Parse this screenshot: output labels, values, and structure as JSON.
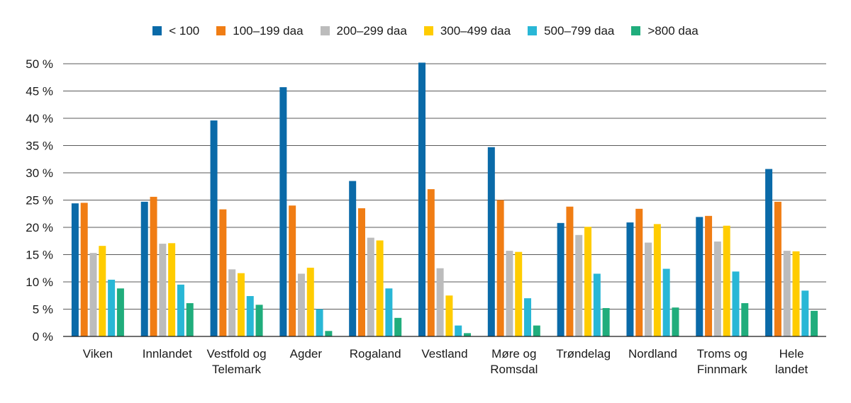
{
  "chart_data": {
    "type": "bar",
    "categories": [
      [
        "Viken"
      ],
      [
        "Innlandet"
      ],
      [
        "Vestfold og",
        "Telemark"
      ],
      [
        "Agder"
      ],
      [
        "Rogaland"
      ],
      [
        "Vestland"
      ],
      [
        "Møre og",
        "Romsdal"
      ],
      [
        "Trøndelag"
      ],
      [
        "Nordland"
      ],
      [
        "Troms og",
        "Finnmark"
      ],
      [
        "Hele",
        "landet"
      ]
    ],
    "series": [
      {
        "name": "< 100",
        "color": "#0a6aa8",
        "values": [
          24.4,
          24.7,
          39.6,
          45.7,
          28.5,
          50.2,
          34.7,
          20.8,
          20.9,
          21.9,
          30.7
        ]
      },
      {
        "name": "100–199 daa",
        "color": "#f07d14",
        "values": [
          24.5,
          25.6,
          23.3,
          24.0,
          23.5,
          27.0,
          25.0,
          23.8,
          23.4,
          22.1,
          24.7
        ]
      },
      {
        "name": "200–299 daa",
        "color": "#bcbcbc",
        "values": [
          15.3,
          17.0,
          12.3,
          11.5,
          18.1,
          12.5,
          15.7,
          18.6,
          17.2,
          17.4,
          15.7
        ]
      },
      {
        "name": "300–499 daa",
        "color": "#ffcc00",
        "values": [
          16.6,
          17.1,
          11.6,
          12.6,
          17.6,
          7.5,
          15.5,
          20.1,
          20.6,
          20.3,
          15.6
        ]
      },
      {
        "name": "500–799 daa",
        "color": "#29b7d6",
        "values": [
          10.4,
          9.5,
          7.4,
          5.0,
          8.8,
          2.0,
          7.0,
          11.5,
          12.4,
          11.9,
          8.4
        ]
      },
      {
        "name": ">800 daa",
        "color": "#20ad7c",
        "values": [
          8.8,
          6.1,
          5.8,
          1.0,
          3.4,
          0.6,
          2.0,
          5.2,
          5.3,
          6.1,
          4.7
        ]
      }
    ],
    "yticks": [
      "0 %",
      "5 %",
      "10 %",
      "15 %",
      "20 %",
      "25 %",
      "30 %",
      "35 %",
      "40 %",
      "45 %",
      "50 %"
    ],
    "ylim": [
      0,
      50
    ],
    "grid": true,
    "legend_position": "top"
  }
}
